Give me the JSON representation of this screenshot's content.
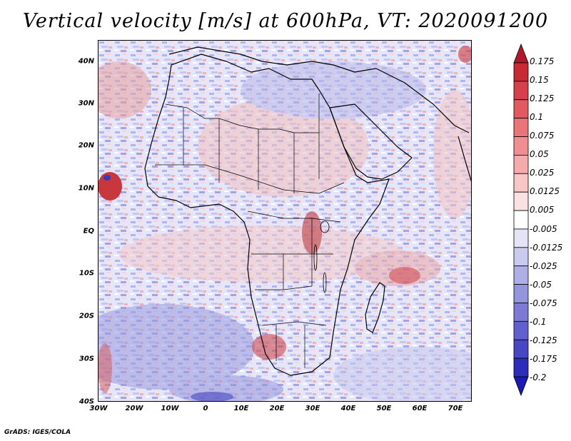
{
  "title": "Vertical velocity [m/s] at 600hPa, VT: 2020091200",
  "map": {
    "lat_labels": [
      "40N",
      "30N",
      "20N",
      "10N",
      "EQ",
      "10S",
      "20S",
      "30S",
      "40S"
    ],
    "lon_labels": [
      "30W",
      "20W",
      "10W",
      "0",
      "10E",
      "20E",
      "30E",
      "40E",
      "50E",
      "60E",
      "70E"
    ]
  },
  "colorbar": {
    "labels": [
      "0.175",
      "0.15",
      "0.125",
      "0.1",
      "0.075",
      "0.05",
      "0.025",
      "0.0125",
      "0.005",
      "-0.005",
      "-0.0125",
      "-0.025",
      "-0.05",
      "-0.075",
      "-0.1",
      "-0.125",
      "-0.175",
      "-0.2"
    ],
    "colors": [
      "#b2182b",
      "#c62a32",
      "#d6404a",
      "#e15a60",
      "#ea7478",
      "#f08f91",
      "#f5aaab",
      "#f8c6c6",
      "#fbe2e2",
      "#ffffff",
      "#e4e4f6",
      "#cacaef",
      "#afafe7",
      "#9595df",
      "#7b7bd6",
      "#6161ce",
      "#4747c4",
      "#2d2dbb",
      "#1a1ab0"
    ]
  },
  "footer": "GrADS: IGES/COLA"
}
